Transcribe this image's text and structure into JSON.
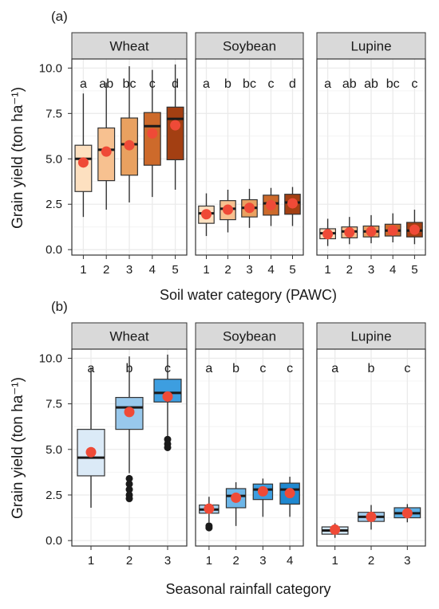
{
  "panel_tags": {
    "a": "(a)",
    "b": "(b)"
  },
  "ylabel": "Grain yield (ton ha⁻¹)",
  "xlabel_a": "Soil water category (PAWC)",
  "xlabel_b": "Seasonal rainfall category",
  "colors": {
    "strip_bg": "#d9d9d9",
    "mean_point": "#ef4a37",
    "grid": "#ebebeb",
    "border": "#333333",
    "fills_pawc": [
      "#fde0c0",
      "#f7c190",
      "#e9a160",
      "#cd6a2b",
      "#a33f12"
    ],
    "fills_rain_wheat": [
      "#dbeaf7",
      "#98c8ec",
      "#3d9ee0"
    ],
    "fills_rain_soy": [
      "#a9d3f0",
      "#6db6e8",
      "#3d9ee0",
      "#1f88d0"
    ],
    "fills_rain_lupine": [
      "#cfe4f5",
      "#a3cdee",
      "#5cb0e6"
    ]
  },
  "chart_data": [
    {
      "type": "boxplot",
      "panel": "(a)",
      "xlabel": "Soil water category (PAWC)",
      "ylabel": "Grain yield (ton ha⁻¹)",
      "ylim": [
        -0.3,
        10.5
      ],
      "yticks": [
        0.0,
        2.5,
        5.0,
        7.5,
        10.0
      ],
      "ytick_labels": [
        "0.0",
        "2.5",
        "5.0",
        "7.5",
        "10.0"
      ],
      "facets": [
        {
          "name": "Wheat",
          "categories": [
            "1",
            "2",
            "3",
            "4",
            "5"
          ],
          "boxes": [
            {
              "whislo": 1.8,
              "q1": 3.2,
              "med": 5.0,
              "q3": 5.75,
              "whishi": 8.6,
              "mean": 4.8,
              "fliers": []
            },
            {
              "whislo": 2.2,
              "q1": 3.8,
              "med": 5.5,
              "q3": 6.7,
              "whishi": 9.2,
              "mean": 5.4,
              "fliers": []
            },
            {
              "whislo": 2.6,
              "q1": 4.1,
              "med": 5.8,
              "q3": 7.25,
              "whishi": 10.1,
              "mean": 5.75,
              "fliers": []
            },
            {
              "whislo": 2.9,
              "q1": 4.65,
              "med": 6.8,
              "q3": 7.55,
              "whishi": 9.9,
              "mean": 6.4,
              "fliers": []
            },
            {
              "whislo": 3.3,
              "q1": 4.95,
              "med": 7.2,
              "q3": 7.85,
              "whishi": 10.2,
              "mean": 6.85,
              "fliers": []
            }
          ],
          "letters": [
            "a",
            "ab",
            "bc",
            "c",
            "d"
          ]
        },
        {
          "name": "Soybean",
          "categories": [
            "1",
            "2",
            "3",
            "4",
            "5"
          ],
          "boxes": [
            {
              "whislo": 0.75,
              "q1": 1.45,
              "med": 2.0,
              "q3": 2.4,
              "whishi": 3.1,
              "mean": 1.95,
              "fliers": []
            },
            {
              "whislo": 0.95,
              "q1": 1.65,
              "med": 2.25,
              "q3": 2.7,
              "whishi": 3.3,
              "mean": 2.2,
              "fliers": []
            },
            {
              "whislo": 1.2,
              "q1": 1.8,
              "med": 2.3,
              "q3": 2.75,
              "whishi": 3.35,
              "mean": 2.3,
              "fliers": []
            },
            {
              "whislo": 1.3,
              "q1": 1.9,
              "med": 2.55,
              "q3": 3.0,
              "whishi": 3.4,
              "mean": 2.45,
              "fliers": []
            },
            {
              "whislo": 1.3,
              "q1": 1.95,
              "med": 2.6,
              "q3": 3.05,
              "whishi": 3.45,
              "mean": 2.55,
              "fliers": []
            }
          ],
          "letters": [
            "a",
            "b",
            "bc",
            "c",
            "d"
          ]
        },
        {
          "name": "Lupine",
          "categories": [
            "1",
            "2",
            "3",
            "4",
            "5"
          ],
          "boxes": [
            {
              "whislo": 0.2,
              "q1": 0.6,
              "med": 0.9,
              "q3": 1.15,
              "whishi": 1.7,
              "mean": 0.85,
              "fliers": []
            },
            {
              "whislo": 0.3,
              "q1": 0.65,
              "med": 1.0,
              "q3": 1.25,
              "whishi": 1.8,
              "mean": 0.95,
              "fliers": []
            },
            {
              "whislo": 0.35,
              "q1": 0.7,
              "med": 1.0,
              "q3": 1.3,
              "whishi": 1.9,
              "mean": 1.0,
              "fliers": []
            },
            {
              "whislo": 0.4,
              "q1": 0.75,
              "med": 1.05,
              "q3": 1.4,
              "whishi": 2.0,
              "mean": 1.05,
              "fliers": []
            },
            {
              "whislo": 0.3,
              "q1": 0.7,
              "med": 1.05,
              "q3": 1.5,
              "whishi": 2.2,
              "mean": 1.1,
              "fliers": []
            }
          ],
          "letters": [
            "a",
            "ab",
            "ab",
            "bc",
            "c"
          ]
        }
      ]
    },
    {
      "type": "boxplot",
      "panel": "(b)",
      "xlabel": "Seasonal rainfall category",
      "ylabel": "Grain yield (ton ha⁻¹)",
      "ylim": [
        -0.3,
        10.5
      ],
      "yticks": [
        0.0,
        2.5,
        5.0,
        7.5,
        10.0
      ],
      "ytick_labels": [
        "0.0",
        "2.5",
        "5.0",
        "7.5",
        "10.0"
      ],
      "facets": [
        {
          "name": "Wheat",
          "categories": [
            "1",
            "2",
            "3"
          ],
          "boxes": [
            {
              "whislo": 1.8,
              "q1": 3.55,
              "med": 4.55,
              "q3": 6.1,
              "whishi": 9.5,
              "mean": 4.85,
              "fliers": []
            },
            {
              "whislo": 3.7,
              "q1": 6.1,
              "med": 7.3,
              "q3": 7.85,
              "whishi": 10.1,
              "mean": 7.05,
              "fliers": [
                3.4,
                3.1,
                2.8,
                2.5,
                2.3
              ]
            },
            {
              "whislo": 5.7,
              "q1": 7.6,
              "med": 8.1,
              "q3": 8.85,
              "whishi": 10.2,
              "mean": 7.9,
              "fliers": [
                5.55,
                5.3,
                5.1
              ]
            }
          ],
          "letters": [
            "a",
            "b",
            "c"
          ]
        },
        {
          "name": "Soybean",
          "categories": [
            "1",
            "2",
            "3",
            "4"
          ],
          "boxes": [
            {
              "whislo": 1.0,
              "q1": 1.5,
              "med": 1.7,
              "q3": 1.95,
              "whishi": 2.4,
              "mean": 1.75,
              "fliers": [
                0.8,
                0.7
              ]
            },
            {
              "whislo": 0.8,
              "q1": 1.8,
              "med": 2.45,
              "q3": 2.85,
              "whishi": 3.2,
              "mean": 2.35,
              "fliers": []
            },
            {
              "whislo": 1.3,
              "q1": 2.25,
              "med": 2.8,
              "q3": 3.1,
              "whishi": 3.4,
              "mean": 2.7,
              "fliers": []
            },
            {
              "whislo": 1.3,
              "q1": 2.0,
              "med": 2.8,
              "q3": 3.15,
              "whishi": 3.5,
              "mean": 2.6,
              "fliers": []
            }
          ],
          "letters": [
            "a",
            "b",
            "c",
            "c"
          ]
        },
        {
          "name": "Lupine",
          "categories": [
            "1",
            "2",
            "3"
          ],
          "boxes": [
            {
              "whislo": 0.15,
              "q1": 0.35,
              "med": 0.55,
              "q3": 0.75,
              "whishi": 0.95,
              "mean": 0.6,
              "fliers": []
            },
            {
              "whislo": 0.6,
              "q1": 1.05,
              "med": 1.3,
              "q3": 1.55,
              "whishi": 1.95,
              "mean": 1.3,
              "fliers": []
            },
            {
              "whislo": 1.0,
              "q1": 1.25,
              "med": 1.5,
              "q3": 1.8,
              "whishi": 2.0,
              "mean": 1.5,
              "fliers": []
            }
          ],
          "letters": [
            "a",
            "b",
            "c"
          ]
        }
      ]
    }
  ]
}
